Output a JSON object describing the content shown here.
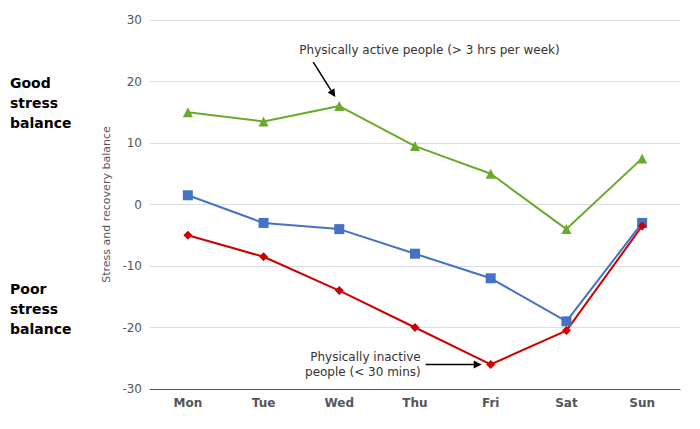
{
  "chart_data": {
    "type": "line",
    "categories": [
      "Mon",
      "Tue",
      "Wed",
      "Thu",
      "Fri",
      "Sat",
      "Sun"
    ],
    "series": [
      {
        "color": "#6aaa2a",
        "marker": "triangle",
        "values": [
          15,
          13.5,
          16,
          9.5,
          5,
          -4,
          7.5
        ],
        "annotation": "Physically active people (> 3 hrs per week)"
      },
      {
        "color": "#4472c4",
        "marker": "square",
        "values": [
          1.5,
          -3,
          -4,
          -8,
          -12,
          -19,
          -3
        ]
      },
      {
        "color": "#cc0000",
        "marker": "diamond",
        "values": [
          -5,
          -8.5,
          -14,
          -20,
          -26,
          -20.5,
          -3.5
        ],
        "annotation": "Physically inactive\npeople (< 30 mins)"
      }
    ],
    "ylabel": "Stress and recovery balance",
    "ylim": [
      -30,
      30
    ],
    "yticks": [
      -30,
      -20,
      -10,
      0,
      10,
      20,
      30
    ],
    "grid": true,
    "annotations": [
      "Good\nstress\nbalance",
      "Poor\nstress\nbalance"
    ]
  }
}
